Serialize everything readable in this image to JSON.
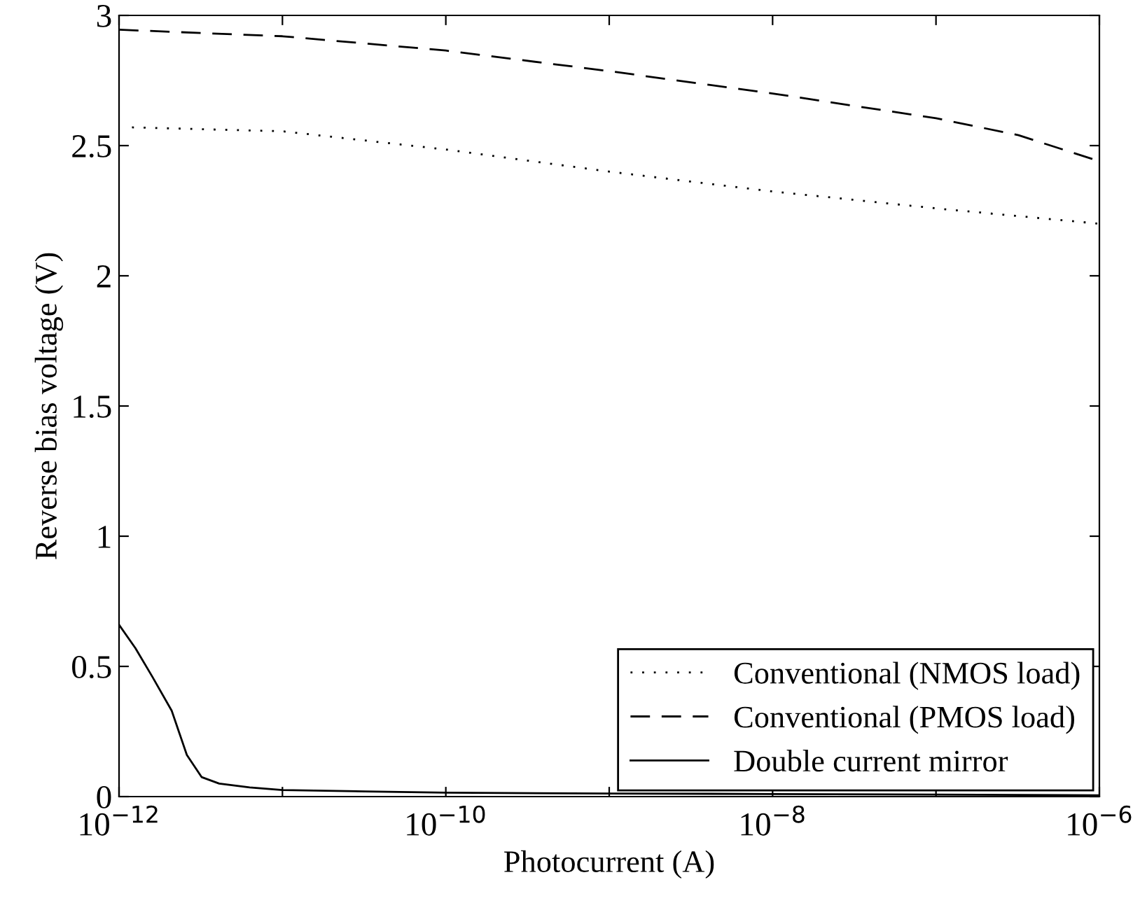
{
  "chart_data": {
    "type": "line",
    "xlabel": "Photocurrent (A)",
    "ylabel": "Reverse bias voltage (V)",
    "log": "x",
    "xlim": [
      1e-12,
      1e-06
    ],
    "ylim": [
      0,
      3
    ],
    "xticks": [
      {
        "value": 1e-12,
        "label": "10$^{−12}$"
      },
      {
        "value": 1e-11,
        "label": null
      },
      {
        "value": 1e-10,
        "label": "10$^{−10}$"
      },
      {
        "value": 1e-09,
        "label": null
      },
      {
        "value": 1e-08,
        "label": "10$^{−8}$"
      },
      {
        "value": 1e-07,
        "label": null
      },
      {
        "value": 1e-06,
        "label": "10$^{−6}$"
      }
    ],
    "yticks": [
      0,
      0.5,
      1,
      1.5,
      2,
      2.5,
      3
    ],
    "grid": false,
    "legend": "bottom right",
    "series": [
      {
        "name": "Conventional (NMOS load)",
        "color": "#000000",
        "line_style": "dotted",
        "x": [
          1.2e-12,
          1e-11,
          1e-10,
          1e-09,
          1e-08,
          1e-07,
          1e-06
        ],
        "values": [
          2.57,
          2.555,
          2.485,
          2.4,
          2.324,
          2.259,
          2.2
        ]
      },
      {
        "name": "Conventional (PMOS load)",
        "color": "#000000",
        "line_style": "dashed",
        "x": [
          1e-12,
          1e-11,
          1e-10,
          1e-09,
          1e-08,
          1e-07,
          3.2e-07,
          1e-06
        ],
        "values": [
          2.945,
          2.92,
          2.865,
          2.786,
          2.7,
          2.605,
          2.54,
          2.44
        ]
      },
      {
        "name": "Double current mirror",
        "color": "#000000",
        "line_style": "solid",
        "x": [
          1e-12,
          1.26e-12,
          1.6e-12,
          2.1e-12,
          2.6e-12,
          3.2e-12,
          4.1e-12,
          6.3e-12,
          1e-11,
          3.2e-11,
          1e-10,
          1e-09,
          1e-08,
          1e-07,
          1e-06
        ],
        "values": [
          0.66,
          0.57,
          0.46,
          0.33,
          0.16,
          0.075,
          0.05,
          0.035,
          0.025,
          0.02,
          0.015,
          0.012,
          0.01,
          0.008,
          0.005
        ]
      }
    ]
  }
}
